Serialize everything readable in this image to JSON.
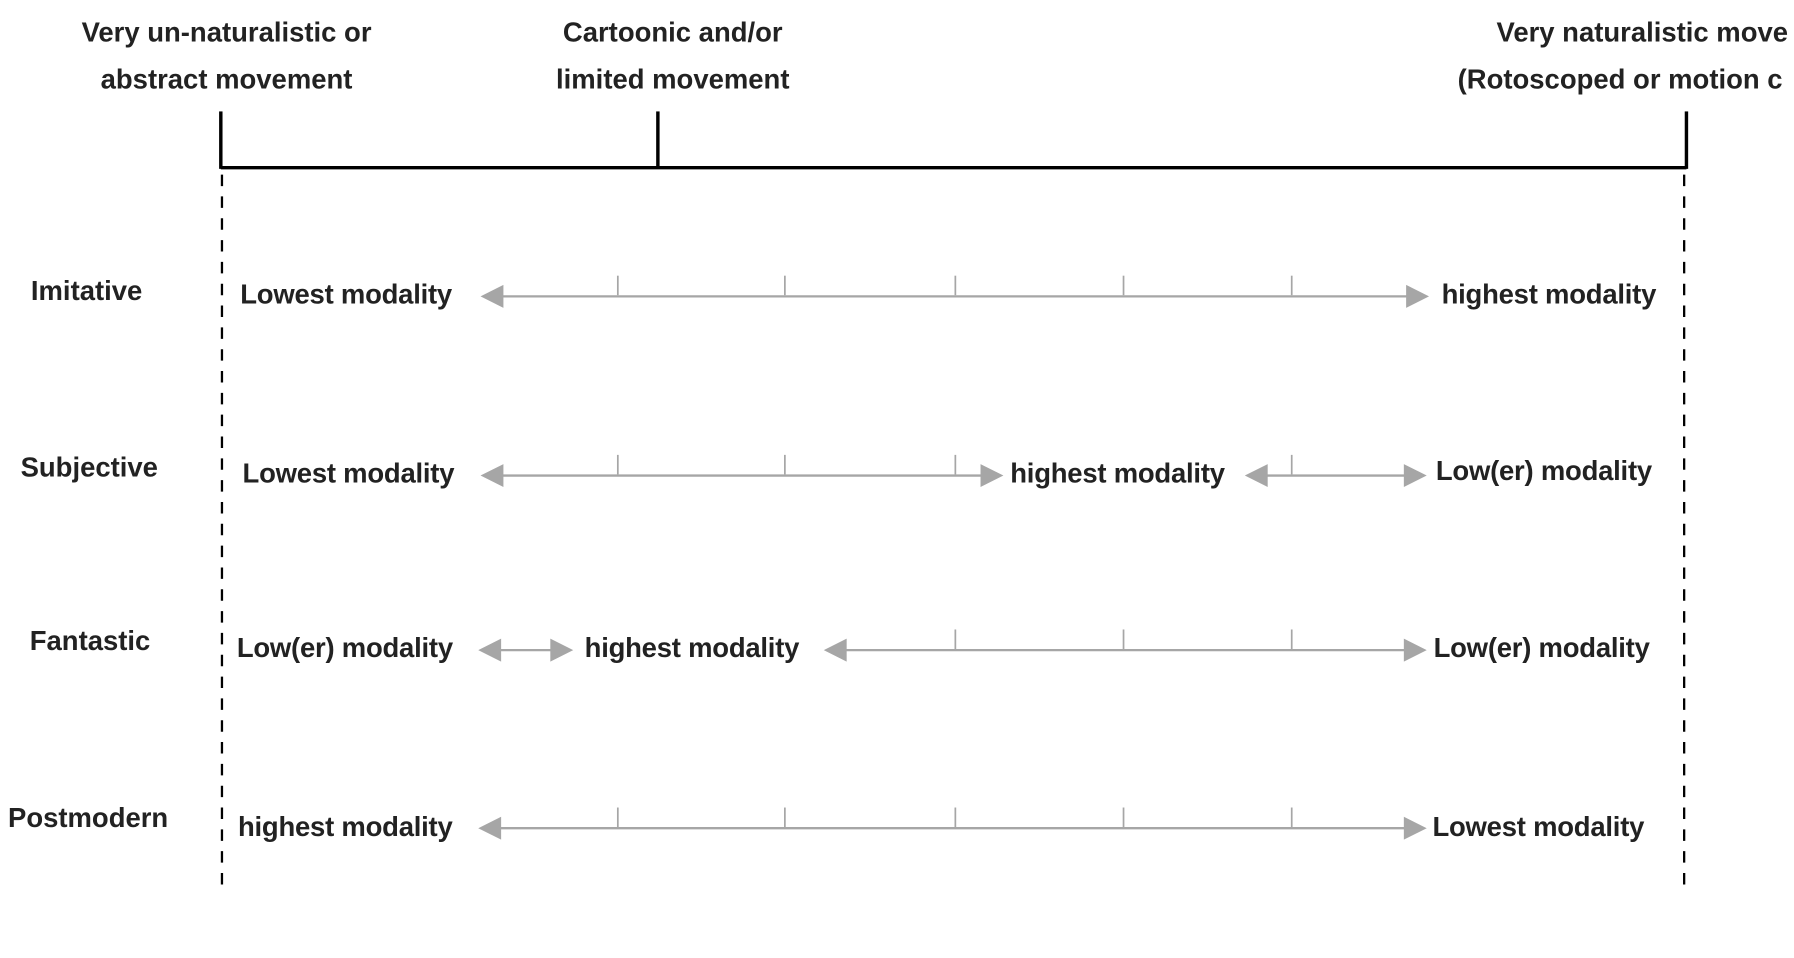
{
  "colors": {
    "text": "#222222",
    "axis": "#000000",
    "arrow": "#a6a6a6"
  },
  "scale": {
    "left": {
      "line1": "Very un-naturalistic or",
      "line2": "abstract movement"
    },
    "middle": {
      "line1": "Cartoonic and/or",
      "line2": "limited movement"
    },
    "right": {
      "line1": "Very naturalistic move",
      "line2": "(Rotoscoped or motion c"
    }
  },
  "rows": [
    {
      "name": "Imitative",
      "labels": [
        "Lowest modality",
        "highest modality"
      ]
    },
    {
      "name": "Subjective",
      "labels": [
        "Lowest modality",
        "highest modality",
        "Low(er) modality"
      ]
    },
    {
      "name": "Fantastic",
      "labels": [
        "Low(er) modality",
        "highest modality",
        "Low(er) modality"
      ]
    },
    {
      "name": "Postmodern",
      "labels": [
        "highest modality",
        "Lowest modality"
      ]
    }
  ]
}
